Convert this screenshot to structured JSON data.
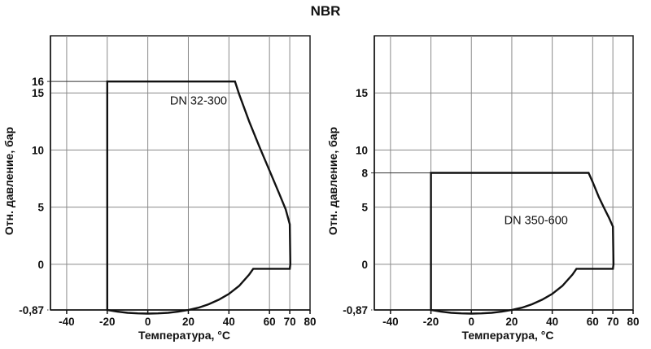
{
  "title": "NBR",
  "chart_data": [
    {
      "type": "area",
      "title": "",
      "xlabel": "Температура, °C",
      "ylabel": "Отн. давление, бар",
      "xticks": [
        -40,
        -20,
        0,
        20,
        40,
        60,
        70,
        80
      ],
      "xtick_labels": [
        "-40",
        "-20",
        "0",
        "20",
        "40",
        "60",
        "70",
        "80"
      ],
      "yticks": [
        -0.87,
        0,
        5,
        10,
        15,
        16
      ],
      "ytick_labels": [
        "-0,87",
        "0",
        "5",
        "10",
        "15",
        "16"
      ],
      "xlim": [
        -48,
        80
      ],
      "ylim": [
        -4,
        20
      ],
      "grid": true,
      "annotation": "DN 32-300",
      "boundary": {
        "x": [
          -20,
          43,
          45,
          50,
          55,
          60,
          65,
          68,
          70,
          70.3,
          70,
          52,
          50,
          45,
          40,
          35,
          30,
          25,
          20,
          15,
          10,
          5,
          0,
          -5,
          -10,
          -15,
          -20,
          -20
        ],
        "y": [
          16,
          16,
          14.9,
          12.5,
          10.3,
          8.2,
          6.1,
          4.8,
          3.5,
          0,
          -0.4,
          -0.4,
          -0.9,
          -1.9,
          -2.6,
          -3.1,
          -3.5,
          -3.8,
          -4.0,
          -4.15,
          -4.25,
          -4.3,
          -4.32,
          -4.3,
          -4.25,
          -4.15,
          -4.0,
          16
        ]
      }
    },
    {
      "type": "area",
      "title": "",
      "xlabel": "Температура, °C",
      "ylabel": "Отн. давление, бар",
      "xticks": [
        -40,
        -20,
        0,
        20,
        40,
        60,
        70,
        80
      ],
      "xtick_labels": [
        "-40",
        "-20",
        "0",
        "20",
        "40",
        "60",
        "70",
        "80"
      ],
      "yticks": [
        -0.87,
        0,
        5,
        8,
        10,
        15
      ],
      "ytick_labels": [
        "-0,87",
        "0",
        "5",
        "8",
        "10",
        "15"
      ],
      "xlim": [
        -48,
        80
      ],
      "ylim": [
        -4,
        20
      ],
      "grid": true,
      "annotation": "DN 350-600",
      "boundary": {
        "x": [
          -20,
          58,
          60,
          63,
          66,
          68,
          70,
          70.3,
          70,
          52,
          50,
          45,
          40,
          35,
          30,
          25,
          20,
          15,
          10,
          5,
          0,
          -5,
          -10,
          -15,
          -20,
          -20
        ],
        "y": [
          8,
          8,
          7.2,
          5.9,
          4.8,
          4.1,
          3.3,
          0,
          -0.4,
          -0.4,
          -0.9,
          -1.9,
          -2.6,
          -3.1,
          -3.5,
          -3.8,
          -4.0,
          -4.15,
          -4.25,
          -4.3,
          -4.32,
          -4.3,
          -4.25,
          -4.15,
          -4.0,
          8
        ]
      }
    }
  ]
}
